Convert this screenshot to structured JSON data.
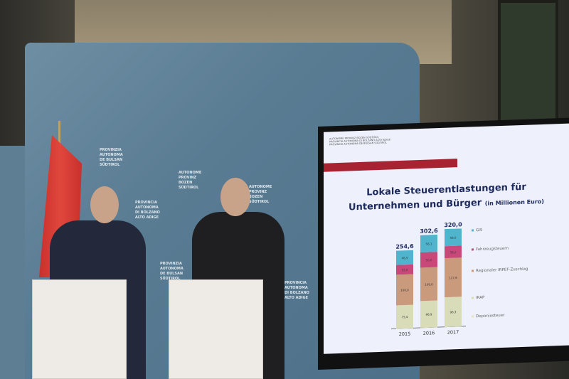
{
  "banner": {
    "text_blocks": [
      "PROVINZIA\nAUTONOMA\nDE BULSAN\nSÜDTIROL",
      "AUTONOME\nPROVINZ\nBOZEN\nSÜDTIROL",
      "PROVINCIA\nAUTONOMA\nDI BOLZANO\nALTO ADIGE"
    ]
  },
  "screen": {
    "logo_lines": [
      "AUTONOME PROVINZ BOZEN SÜDTIROL",
      "PROVINCIA AUTONOMA DI BOLZANO ALTO ADIGE",
      "PROVINZIA AUTONOMA DE BULSAN SÜDTIROL"
    ],
    "title_line1": "Lokale Steuerentlastungen für",
    "title_line2": "Unternehmen und Bürger",
    "title_unit": "(in Millionen Euro)"
  },
  "chart_data": {
    "type": "bar",
    "stacked": true,
    "categories": [
      "2015",
      "2016",
      "2017"
    ],
    "totals": [
      "254,6",
      "302,6",
      "320,0"
    ],
    "series": [
      {
        "name": "Deponiesteuer",
        "color": "#e6e4c4",
        "values": [
          0.7,
          0.6,
          0.7
        ]
      },
      {
        "name": "IRAP",
        "color": "#d9dcb8",
        "values": [
          75.4,
          86.9,
          96.3
        ]
      },
      {
        "name": "Regionaler IRPEF-Zuschlag",
        "color": "#c99a7c",
        "values": [
          100.0,
          109.0,
          127.8
        ]
      },
      {
        "name": "Fahrzeugsteuern",
        "color": "#c9487a",
        "values": [
          32.0,
          50.0,
          39.2
        ]
      },
      {
        "name": "GIS",
        "color": "#4fb4cc",
        "values": [
          46.5,
          56.1,
          56.0
        ]
      }
    ],
    "legend": "right"
  }
}
